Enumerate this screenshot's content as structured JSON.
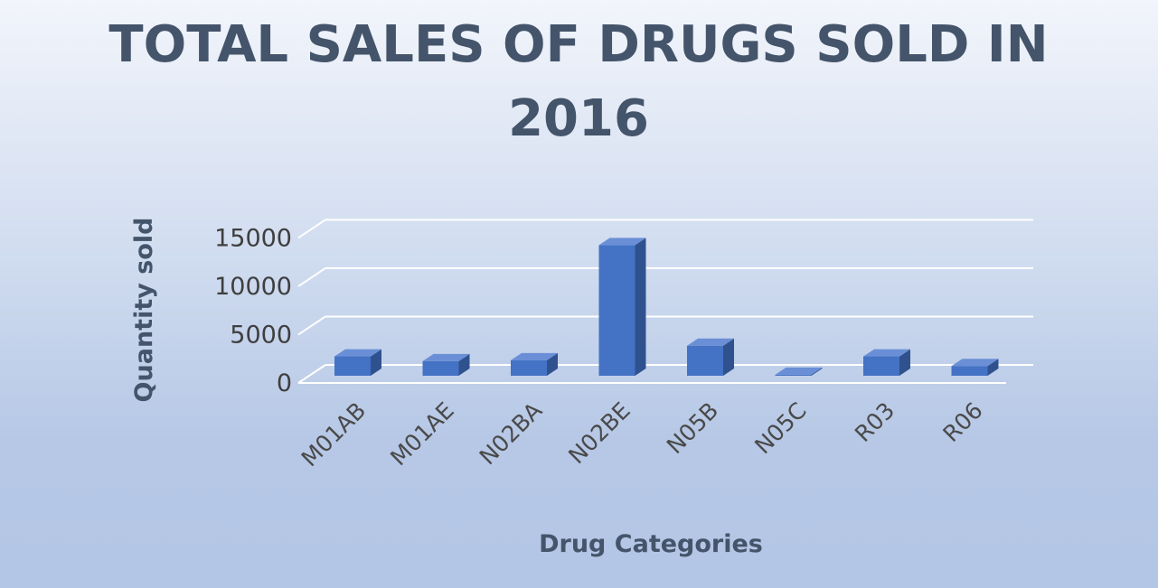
{
  "chart_data": {
    "type": "bar",
    "style": "3d-column",
    "title_lines": [
      "TOTAL SALES OF DRUGS SOLD IN",
      "2016"
    ],
    "xlabel": "Drug Categories",
    "ylabel": "Quantity sold",
    "categories": [
      "M01AB",
      "M01AE",
      "N02BA",
      "N02BE",
      "N05B",
      "N05C",
      "R03",
      "R06"
    ],
    "values": [
      2000,
      1500,
      1600,
      13500,
      3100,
      100,
      2000,
      1000
    ],
    "yticks": [
      0,
      5000,
      10000,
      15000
    ],
    "ylim": [
      0,
      17000
    ],
    "grid": true,
    "legend": "none",
    "colors": {
      "bar_front": "#4472c4",
      "bar_side": "#2f528f",
      "bar_top": "#6a8fd6",
      "gridline": "#ffffff",
      "title": "#44546a"
    }
  }
}
